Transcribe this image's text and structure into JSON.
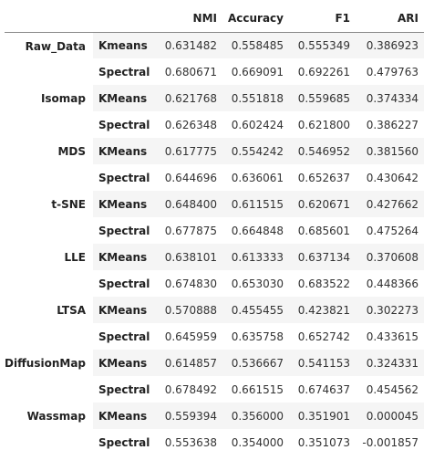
{
  "table": {
    "columns": [
      "NMI",
      "Accuracy",
      "F1",
      "ARI"
    ],
    "groups": [
      {
        "method": "Raw_Data",
        "rows": [
          {
            "algo": "Kmeans",
            "values": [
              "0.631482",
              "0.558485",
              "0.555349",
              "0.386923"
            ]
          },
          {
            "algo": "Spectral",
            "values": [
              "0.680671",
              "0.669091",
              "0.692261",
              "0.479763"
            ]
          }
        ]
      },
      {
        "method": "Isomap",
        "rows": [
          {
            "algo": "KMeans",
            "values": [
              "0.621768",
              "0.551818",
              "0.559685",
              "0.374334"
            ]
          },
          {
            "algo": "Spectral",
            "values": [
              "0.626348",
              "0.602424",
              "0.621800",
              "0.386227"
            ]
          }
        ]
      },
      {
        "method": "MDS",
        "rows": [
          {
            "algo": "KMeans",
            "values": [
              "0.617775",
              "0.554242",
              "0.546952",
              "0.381560"
            ]
          },
          {
            "algo": "Spectral",
            "values": [
              "0.644696",
              "0.636061",
              "0.652637",
              "0.430642"
            ]
          }
        ]
      },
      {
        "method": "t-SNE",
        "rows": [
          {
            "algo": "KMeans",
            "values": [
              "0.648400",
              "0.611515",
              "0.620671",
              "0.427662"
            ]
          },
          {
            "algo": "Spectral",
            "values": [
              "0.677875",
              "0.664848",
              "0.685601",
              "0.475264"
            ]
          }
        ]
      },
      {
        "method": "LLE",
        "rows": [
          {
            "algo": "KMeans",
            "values": [
              "0.638101",
              "0.613333",
              "0.637134",
              "0.370608"
            ]
          },
          {
            "algo": "Spectral",
            "values": [
              "0.674830",
              "0.653030",
              "0.683522",
              "0.448366"
            ]
          }
        ]
      },
      {
        "method": "LTSA",
        "rows": [
          {
            "algo": "KMeans",
            "values": [
              "0.570888",
              "0.455455",
              "0.423821",
              "0.302273"
            ]
          },
          {
            "algo": "Spectral",
            "values": [
              "0.645959",
              "0.635758",
              "0.652742",
              "0.433615"
            ]
          }
        ]
      },
      {
        "method": "DiffusionMap",
        "rows": [
          {
            "algo": "KMeans",
            "values": [
              "0.614857",
              "0.536667",
              "0.541153",
              "0.324331"
            ]
          },
          {
            "algo": "Spectral",
            "values": [
              "0.678492",
              "0.661515",
              "0.674637",
              "0.454562"
            ]
          }
        ]
      },
      {
        "method": "Wassmap",
        "rows": [
          {
            "algo": "KMeans",
            "values": [
              "0.559394",
              "0.356000",
              "0.351901",
              "0.000045"
            ]
          },
          {
            "algo": "Spectral",
            "values": [
              "0.553638",
              "0.354000",
              "0.351073",
              "-0.001857"
            ]
          }
        ]
      }
    ]
  }
}
